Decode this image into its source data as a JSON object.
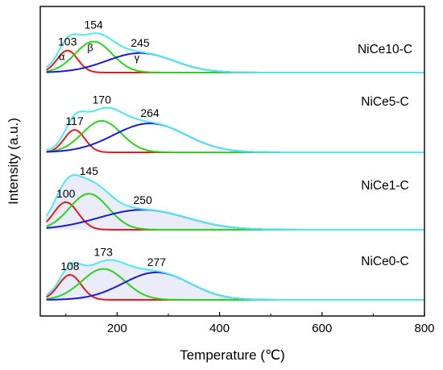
{
  "chart_data": {
    "type": "line",
    "xlabel": "Temperature (℃)",
    "ylabel": "Intensity (a.u.)",
    "xlim": [
      50,
      800
    ],
    "xticks": [
      200,
      400,
      600,
      800
    ],
    "yticks_shown": false,
    "grid": false,
    "colors": {
      "alpha": "#e21b1b",
      "beta": "#2bd21b",
      "gamma": "#1a1ad2",
      "sum": "#4ee8ef"
    },
    "panels": [
      {
        "label": "NiCe10-C",
        "peaks": [
          {
            "center": 103,
            "label": "103",
            "greek": "α",
            "height": 0.44,
            "width": 20,
            "color": "#e21b1b"
          },
          {
            "center": 154,
            "label": "154",
            "greek": "β",
            "height": 0.62,
            "width": 36,
            "color": "#2bd21b"
          },
          {
            "center": 245,
            "label": "245",
            "greek": "γ",
            "height": 0.39,
            "width": 65,
            "color": "#1a1ad2"
          }
        ]
      },
      {
        "label": "NiCe5-C",
        "peaks": [
          {
            "center": 117,
            "label": "117",
            "greek": "",
            "height": 0.45,
            "width": 20,
            "color": "#e21b1b"
          },
          {
            "center": 170,
            "label": "170",
            "greek": "",
            "height": 0.63,
            "width": 38,
            "color": "#2bd21b"
          },
          {
            "center": 264,
            "label": "264",
            "greek": "",
            "height": 0.58,
            "width": 70,
            "color": "#1a1ad2"
          }
        ]
      },
      {
        "label": "NiCe1-C",
        "peaks": [
          {
            "center": 100,
            "label": "100",
            "greek": "",
            "height": 0.55,
            "width": 24,
            "color": "#e21b1b"
          },
          {
            "center": 145,
            "label": "145",
            "greek": "",
            "height": 0.72,
            "width": 38,
            "color": "#2bd21b"
          },
          {
            "center": 250,
            "label": "250",
            "greek": "",
            "height": 0.4,
            "width": 85,
            "color": "#1a1ad2"
          }
        ]
      },
      {
        "label": "NiCe0-C",
        "peaks": [
          {
            "center": 108,
            "label": "108",
            "greek": "",
            "height": 0.5,
            "width": 22,
            "color": "#e21b1b"
          },
          {
            "center": 173,
            "label": "173",
            "greek": "",
            "height": 0.62,
            "width": 42,
            "color": "#2bd21b"
          },
          {
            "center": 277,
            "label": "277",
            "greek": "",
            "height": 0.55,
            "width": 65,
            "color": "#1a1ad2"
          }
        ]
      }
    ]
  }
}
